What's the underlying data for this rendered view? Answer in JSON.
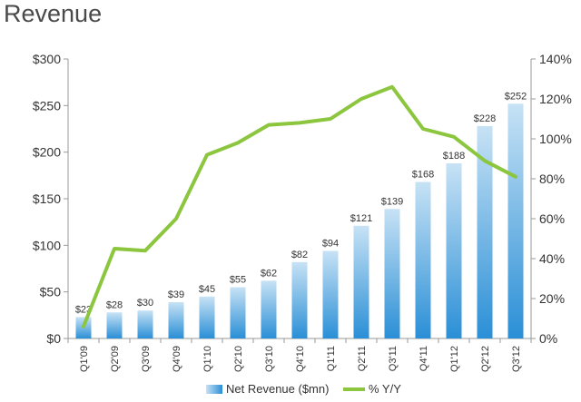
{
  "chart_data": {
    "type": "bar",
    "title": "Revenue",
    "categories": [
      "Q1'09",
      "Q2'09",
      "Q3'09",
      "Q4'09",
      "Q1'10",
      "Q2'10",
      "Q3'10",
      "Q4'10",
      "Q1'11",
      "Q2'11",
      "Q3'11",
      "Q4'11",
      "Q1'12",
      "Q2'12",
      "Q3'12"
    ],
    "series": [
      {
        "name": "Net Revenue ($mn)",
        "kind": "bar",
        "axis": "left",
        "values": [
          23,
          28,
          30,
          39,
          45,
          55,
          62,
          82,
          94,
          121,
          139,
          168,
          188,
          228,
          252
        ],
        "labels": [
          "$23",
          "$28",
          "$30",
          "$39",
          "$45",
          "$55",
          "$62",
          "$82",
          "$94",
          "$121",
          "$139",
          "$168",
          "$188",
          "$228",
          "$252"
        ]
      },
      {
        "name": "% Y/Y",
        "kind": "line",
        "axis": "right",
        "values": [
          6,
          45,
          44,
          60,
          92,
          98,
          107,
          108,
          110,
          120,
          126,
          105,
          101,
          89,
          81
        ]
      }
    ],
    "y_left": {
      "min": 0,
      "max": 300,
      "ticks": [
        0,
        50,
        100,
        150,
        200,
        250,
        300
      ],
      "tick_labels": [
        "$0",
        "$50",
        "$100",
        "$150",
        "$200",
        "$250",
        "$300"
      ]
    },
    "y_right": {
      "min": 0,
      "max": 140,
      "ticks": [
        0,
        20,
        40,
        60,
        80,
        100,
        120,
        140
      ],
      "tick_labels": [
        "0%",
        "20%",
        "40%",
        "60%",
        "80%",
        "100%",
        "120%",
        "140%"
      ]
    },
    "grid": false,
    "legend": "bottom",
    "colors": {
      "bar_top": "#c7e2f5",
      "bar_bottom": "#2a8fd6",
      "line": "#8cc63f",
      "axis": "#999999"
    }
  }
}
